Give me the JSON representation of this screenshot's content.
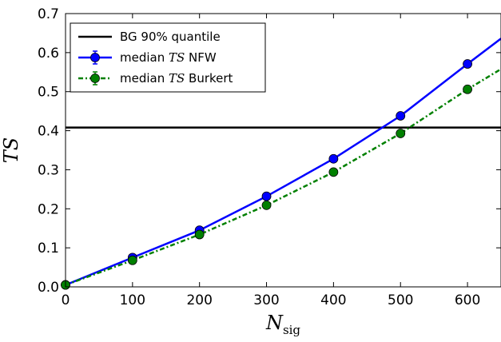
{
  "chart_data": {
    "type": "line",
    "title": "",
    "xlabel": "N",
    "xlabel_sub": "sig",
    "ylabel": "TS",
    "xlim": [
      0,
      650
    ],
    "ylim": [
      0.0,
      0.7
    ],
    "x_ticks": [
      "0",
      "100",
      "200",
      "300",
      "400",
      "500",
      "600"
    ],
    "y_ticks": [
      "0.0",
      "0.1",
      "0.2",
      "0.3",
      "0.4",
      "0.5",
      "0.6",
      "0.7"
    ],
    "grid": false,
    "legend_position": "top-left",
    "reference_line": {
      "name": "BG 90% quantile",
      "y": 0.408,
      "color": "#000000"
    },
    "series": [
      {
        "name_parts": [
          "median ",
          "TS",
          " NFW"
        ],
        "color": "#0000ff",
        "line_style": "solid",
        "x": [
          0,
          100,
          200,
          300,
          400,
          500,
          600
        ],
        "y": [
          0.005,
          0.075,
          0.145,
          0.232,
          0.328,
          0.438,
          0.571
        ],
        "curve_end": {
          "x": 650,
          "y": 0.636
        }
      },
      {
        "name_parts": [
          "median ",
          "TS",
          " Burkert"
        ],
        "color": "#008000",
        "line_style": "dashdot",
        "x": [
          0,
          100,
          200,
          300,
          400,
          500,
          600
        ],
        "y": [
          0.005,
          0.068,
          0.134,
          0.209,
          0.294,
          0.393,
          0.506
        ],
        "curve_end": {
          "x": 650,
          "y": 0.558
        }
      }
    ]
  }
}
